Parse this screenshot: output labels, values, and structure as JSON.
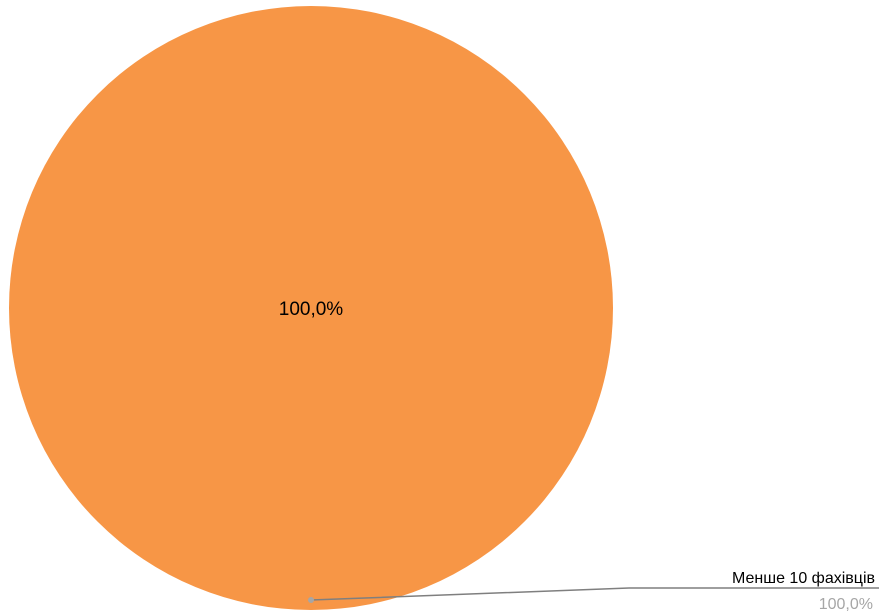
{
  "chart_data": {
    "type": "pie",
    "slices": [
      {
        "label": "Менше 10 фахівців",
        "value": 100.0,
        "value_label": "100,0%",
        "color": "#f79646"
      }
    ],
    "center_label": "100,0%",
    "callout": {
      "category": "Менше 10 фахівців",
      "value": "100,0%",
      "line_color": "#7f7f7f",
      "value_color": "#a6a6a6"
    },
    "legend": "none"
  }
}
